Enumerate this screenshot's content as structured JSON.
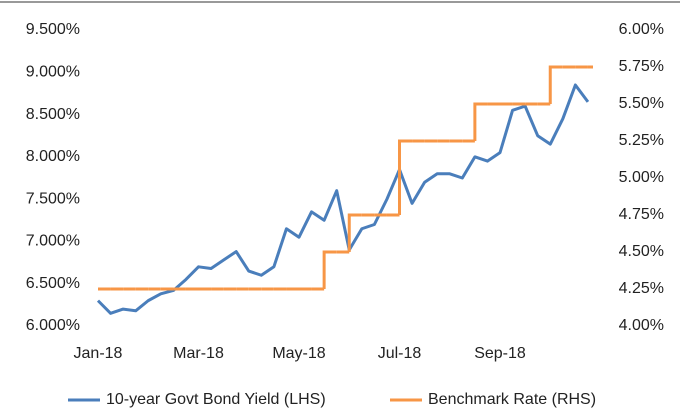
{
  "chart_data": {
    "type": "line",
    "categories": [
      "Jan-18",
      null,
      null,
      null,
      null,
      null,
      null,
      null,
      "Mar-18",
      null,
      null,
      null,
      null,
      null,
      null,
      null,
      "May-18",
      null,
      null,
      null,
      null,
      null,
      null,
      null,
      "Jul-18",
      null,
      null,
      null,
      null,
      null,
      null,
      null,
      "Sep-18",
      null,
      null,
      null,
      null,
      null,
      null,
      null
    ],
    "series": [
      {
        "name": "10-year Govt Bond Yield (LHS)",
        "color": "#4a7ebb",
        "axis": "y",
        "values": [
          6.3,
          6.15,
          6.2,
          6.18,
          6.3,
          6.38,
          6.42,
          6.55,
          6.7,
          6.68,
          6.78,
          6.88,
          6.65,
          6.6,
          6.7,
          7.15,
          7.05,
          7.35,
          7.25,
          7.6,
          6.9,
          7.15,
          7.2,
          7.5,
          7.85,
          7.45,
          7.7,
          7.8,
          7.8,
          7.75,
          8.0,
          7.95,
          8.05,
          8.55,
          8.6,
          8.25,
          8.15,
          8.45,
          8.85,
          8.65
        ]
      },
      {
        "name": "Benchmark Rate (RHS)",
        "color": "#f79646",
        "axis": "y2",
        "step": true,
        "values": [
          4.25,
          4.25,
          4.25,
          4.25,
          4.25,
          4.25,
          4.25,
          4.25,
          4.25,
          4.25,
          4.25,
          4.25,
          4.25,
          4.25,
          4.25,
          4.25,
          4.25,
          4.25,
          4.5,
          4.5,
          4.75,
          4.75,
          4.75,
          4.75,
          5.25,
          5.25,
          5.25,
          5.25,
          5.25,
          5.25,
          5.5,
          5.5,
          5.5,
          5.5,
          5.5,
          5.5,
          5.75,
          5.75,
          5.75,
          5.75
        ]
      }
    ],
    "ylim": [
      6.0,
      9.5
    ],
    "yticks": [
      {
        "value": 6.0,
        "label": "6.000%"
      },
      {
        "value": 6.5,
        "label": "6.500%"
      },
      {
        "value": 7.0,
        "label": "7.000%"
      },
      {
        "value": 7.5,
        "label": "7.500%"
      },
      {
        "value": 8.0,
        "label": "8.000%"
      },
      {
        "value": 8.5,
        "label": "8.500%"
      },
      {
        "value": 9.0,
        "label": "9.000%"
      },
      {
        "value": 9.5,
        "label": "9.500%"
      }
    ],
    "y2lim": [
      4.0,
      6.0
    ],
    "y2ticks": [
      {
        "value": 4.0,
        "label": "4.00%"
      },
      {
        "value": 4.25,
        "label": "4.25%"
      },
      {
        "value": 4.5,
        "label": "4.50%"
      },
      {
        "value": 4.75,
        "label": "4.75%"
      },
      {
        "value": 5.0,
        "label": "5.00%"
      },
      {
        "value": 5.25,
        "label": "5.25%"
      },
      {
        "value": 5.5,
        "label": "5.50%"
      },
      {
        "value": 5.75,
        "label": "5.75%"
      },
      {
        "value": 6.0,
        "label": "6.00%"
      }
    ],
    "legend": "bottom"
  }
}
